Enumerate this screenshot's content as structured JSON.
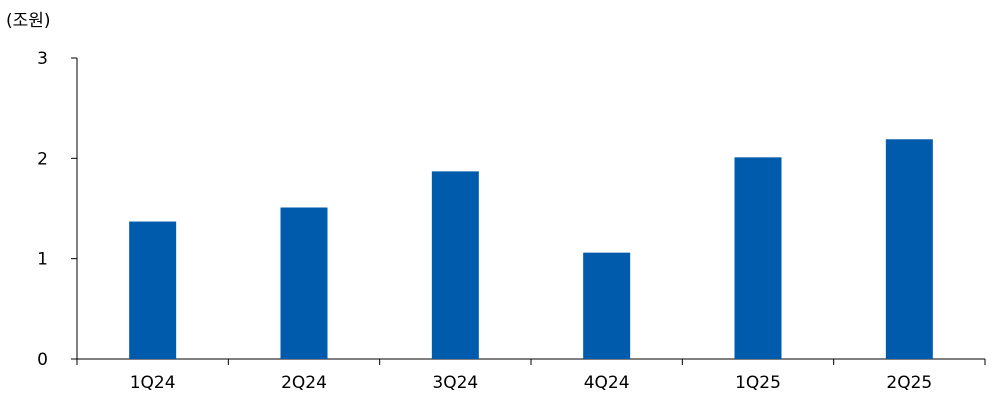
{
  "chart_data": {
    "type": "bar",
    "unit_label": "(조원)",
    "categories": [
      "1Q24",
      "2Q24",
      "3Q24",
      "4Q24",
      "1Q25",
      "2Q25"
    ],
    "values": [
      1.37,
      1.51,
      1.87,
      1.06,
      2.01,
      2.19
    ],
    "ylim": [
      0,
      3
    ],
    "yticks": [
      "0",
      "1",
      "2",
      "3"
    ],
    "grid": false,
    "legend": "none",
    "bar_color": "#005BAC",
    "axis_color": "#000000"
  }
}
